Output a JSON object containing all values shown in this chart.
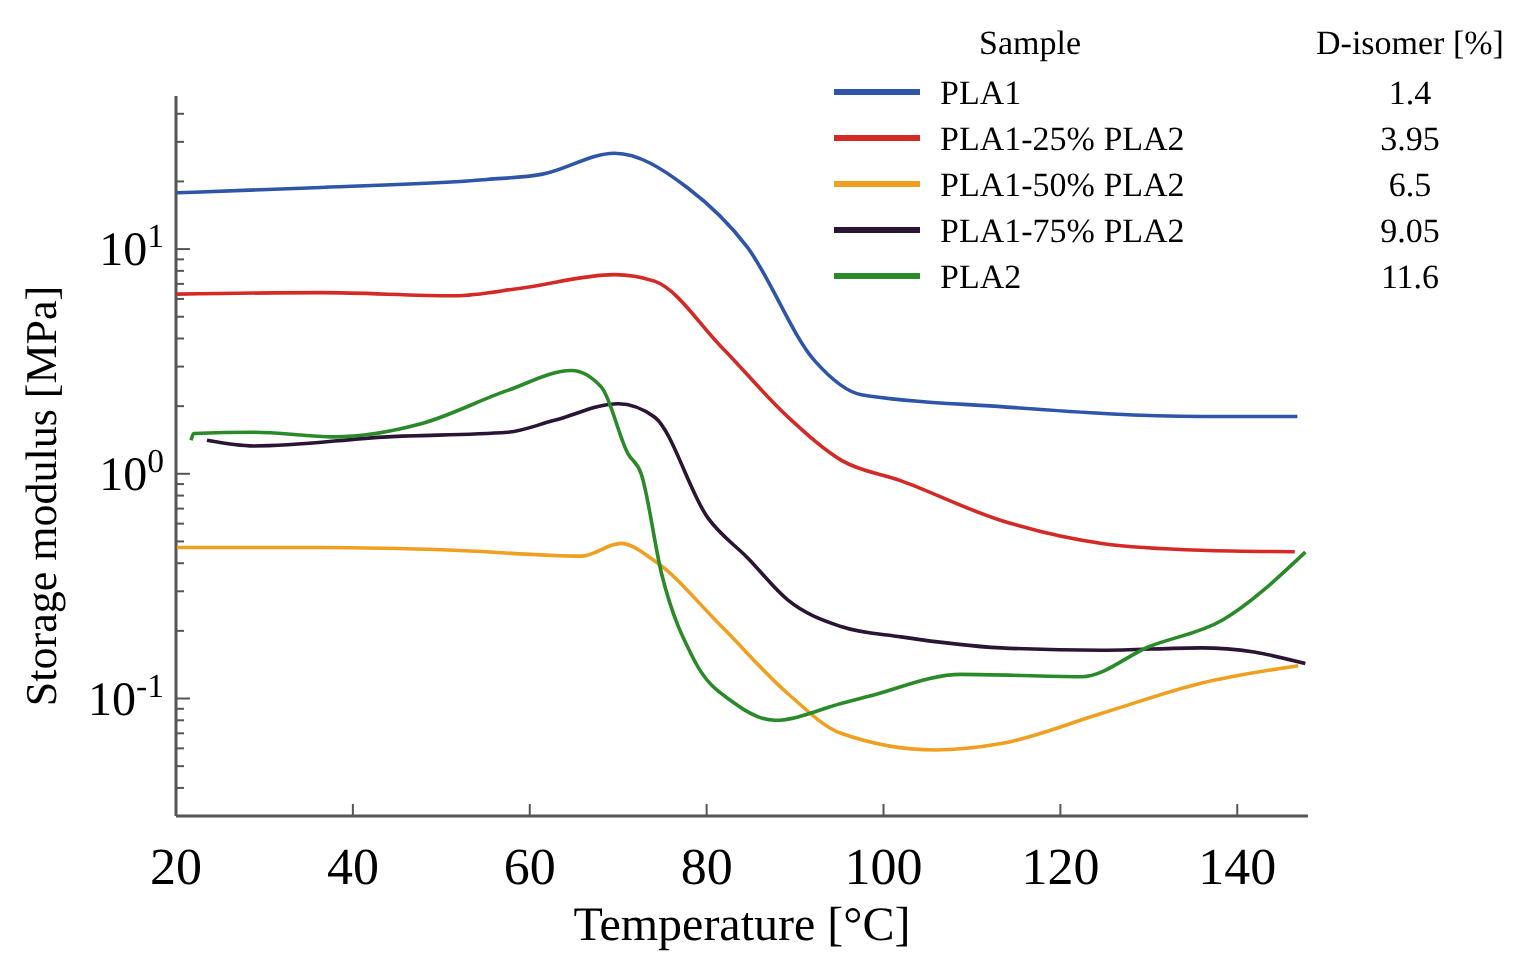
{
  "chart_data": {
    "type": "line",
    "xlabel": "Temperature [°C]",
    "ylabel": "Storage modulus [MPa]",
    "legend_title": "Sample",
    "legend": "top right",
    "log": "y",
    "grid": false,
    "marker": "none",
    "line_style": "solid",
    "xlim": [
      20,
      148
    ],
    "xticks": [
      20,
      40,
      60,
      80,
      100,
      120,
      140
    ],
    "ylim": [
      0.03,
      48
    ],
    "yticks": [
      {
        "value": 0.04,
        "label": null
      },
      {
        "value": 0.05,
        "label": null
      },
      {
        "value": 0.06,
        "label": null
      },
      {
        "value": 0.07,
        "label": null
      },
      {
        "value": 0.08,
        "label": null
      },
      {
        "value": 0.09,
        "label": null
      },
      {
        "value": 0.1,
        "label": "10$^{-1}$"
      },
      {
        "value": 0.2,
        "label": null
      },
      {
        "value": 0.3,
        "label": null
      },
      {
        "value": 0.4,
        "label": null
      },
      {
        "value": 0.5,
        "label": null
      },
      {
        "value": 0.6,
        "label": null
      },
      {
        "value": 0.7,
        "label": null
      },
      {
        "value": 0.8,
        "label": null
      },
      {
        "value": 0.9,
        "label": null
      },
      {
        "value": 1,
        "label": "10$^{0}$"
      },
      {
        "value": 2,
        "label": null
      },
      {
        "value": 3,
        "label": null
      },
      {
        "value": 4,
        "label": null
      },
      {
        "value": 5,
        "label": null
      },
      {
        "value": 6,
        "label": null
      },
      {
        "value": 7,
        "label": null
      },
      {
        "value": 8,
        "label": null
      },
      {
        "value": 9,
        "label": null
      },
      {
        "value": 10,
        "label": "10$^{1}$"
      },
      {
        "value": 20,
        "label": null
      },
      {
        "value": 30,
        "label": null
      },
      {
        "value": 40,
        "label": null
      }
    ],
    "annotations": [
      "D-isomer [%]",
      "1.4",
      "3.95",
      "6.5",
      "9.05",
      "11.6"
    ],
    "series": [
      {
        "name": "PLA1",
        "color": "#2e55a8",
        "x": [
          20.1,
          36.4,
          55.2,
          61.3,
          69.6,
          77.8,
          84.6,
          92.2,
          97.5,
          113.3,
          135.9,
          146.8
        ],
        "values": [
          17.8,
          18.8,
          20.4,
          21.5,
          26.7,
          18.8,
          10.2,
          3.19,
          2.25,
          1.99,
          1.8,
          1.8
        ]
      },
      {
        "name": "PLA1-25% PLA2",
        "color": "#d42a26",
        "x": [
          20.1,
          36.4,
          51.5,
          59,
          69.6,
          74.1,
          81.7,
          89.2,
          95.2,
          102,
          113.3,
          124.7,
          135.9,
          146.5
        ],
        "values": [
          6.3,
          6.4,
          6.2,
          6.7,
          7.7,
          7.2,
          3.66,
          1.79,
          1.15,
          0.93,
          0.62,
          0.49,
          0.457,
          0.45
        ]
      },
      {
        "name": "PLA1-50% PLA2",
        "color": "#f0a020",
        "x": [
          20.1,
          36.4,
          51.5,
          65.8,
          70.3,
          74.1,
          81.7,
          89.2,
          95.2,
          105.8,
          113.3,
          124.7,
          135.9,
          146.9
        ],
        "values": [
          0.47,
          0.47,
          0.457,
          0.43,
          0.49,
          0.41,
          0.209,
          0.105,
          0.07,
          0.059,
          0.063,
          0.086,
          0.117,
          0.14
        ]
      },
      {
        "name": "PLA1-75% PLA2",
        "color": "#2a1535",
        "x": [
          23.5,
          28.8,
          43.9,
          57.5,
          62.8,
          70,
          74.1,
          80.1,
          84.7,
          89.2,
          95.2,
          102,
          113.3,
          124.7,
          135.9,
          141.9,
          147.7
        ],
        "values": [
          1.41,
          1.33,
          1.46,
          1.53,
          1.73,
          2.05,
          1.79,
          0.64,
          0.42,
          0.274,
          0.209,
          0.188,
          0.168,
          0.164,
          0.168,
          0.161,
          0.143
        ]
      },
      {
        "name": "PLA2",
        "color": "#2a8a2a",
        "x": [
          21.7,
          22,
          28.8,
          37.9,
          47.7,
          57.5,
          64.7,
          68.1,
          71.1,
          72.6,
          74.9,
          78.6,
          83.2,
          87.7,
          95.2,
          98.2,
          108.8,
          122.4,
          130,
          138.3,
          147.7
        ],
        "values": [
          1.41,
          1.51,
          1.53,
          1.46,
          1.67,
          2.35,
          2.88,
          2.43,
          1.23,
          1,
          0.36,
          0.148,
          0.095,
          0.08,
          0.095,
          0.102,
          0.128,
          0.125,
          0.17,
          0.223,
          0.448
        ]
      }
    ]
  }
}
